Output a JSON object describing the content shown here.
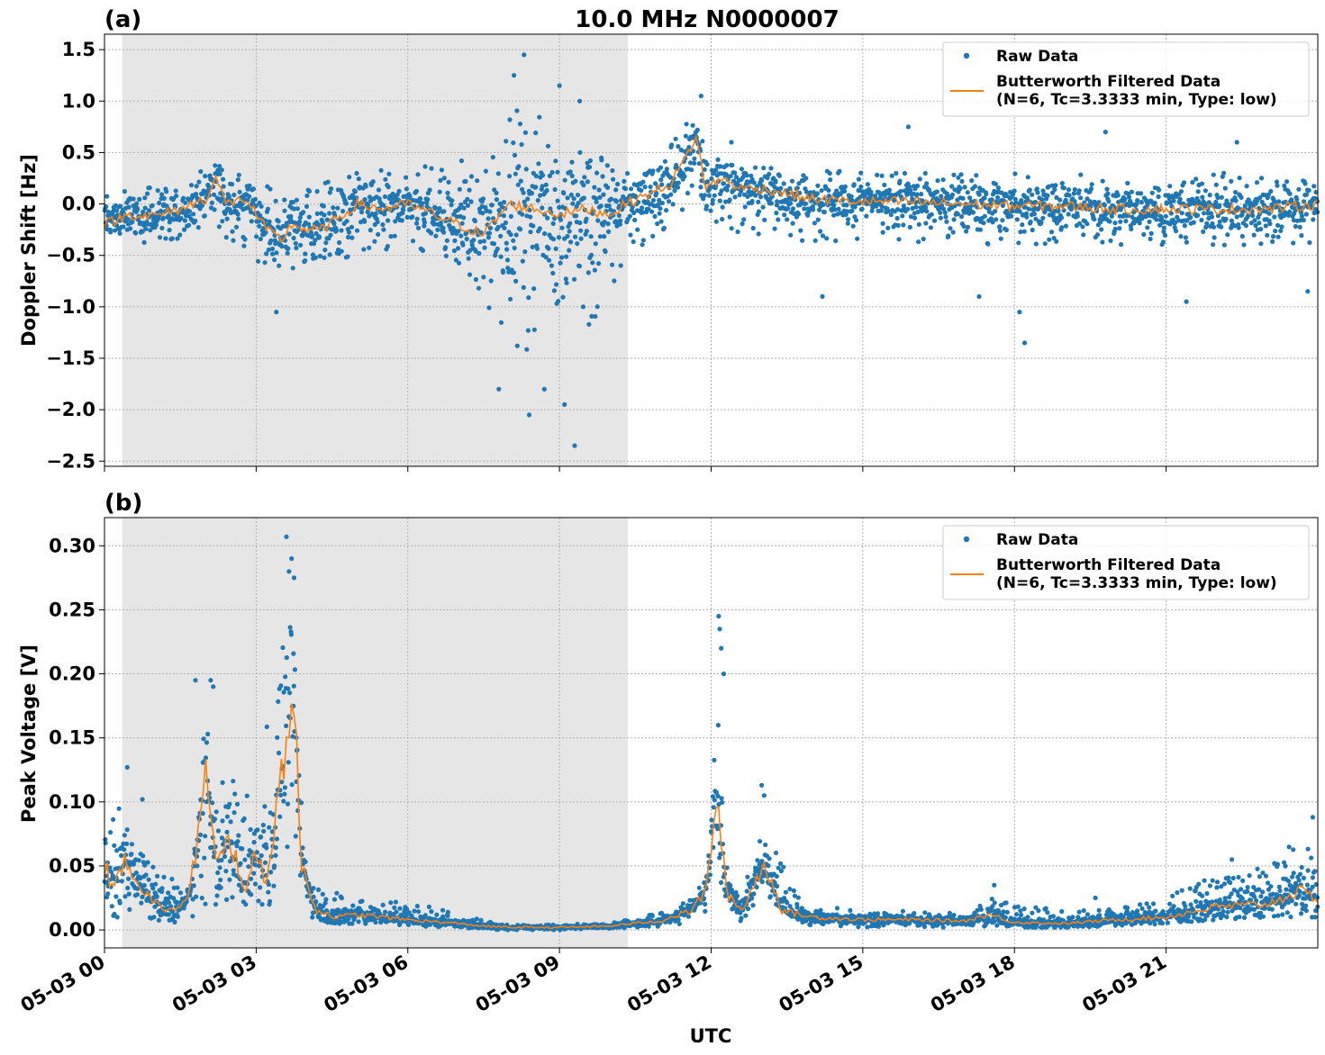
{
  "figure": {
    "title": "10.0 MHz N0000007",
    "xlabel": "UTC",
    "x_ticks": [
      "05-03 00",
      "05-03 03",
      "05-03 06",
      "05-03 09",
      "05-03 12",
      "05-03 15",
      "05-03 18",
      "05-03 21"
    ]
  },
  "legend": {
    "raw": "Raw Data",
    "filtered_line1": "Butterworth Filtered Data",
    "filtered_line2": "(N=6, Tc=3.3333 min, Type: low)"
  },
  "colors": {
    "raw": "#1f77b4",
    "filtered": "#ff7f0e",
    "shade": "#e6e6e6"
  },
  "chart_data": [
    {
      "type": "scatter",
      "panel_label": "(a)",
      "ylabel": "Doppler Shift [Hz]",
      "x_unit": "hours UTC on 05-03",
      "xlim": [
        0,
        24
      ],
      "ylim": [
        -2.55,
        1.65
      ],
      "y_ticks": [
        1.5,
        1.0,
        0.5,
        0.0,
        -0.5,
        -1.0,
        -1.5,
        -2.0,
        -2.5
      ],
      "y_tick_labels": [
        "1.5",
        "1.0",
        "0.5",
        "0.0",
        "−0.5",
        "−1.0",
        "−1.5",
        "−2.0",
        "−2.5"
      ],
      "grid": true,
      "legend_position": "top-right",
      "shaded_region_hours": [
        0.35,
        10.35
      ],
      "filtered_series": {
        "name": "Butterworth Filtered Data",
        "x": [
          0,
          0.5,
          1.0,
          1.5,
          2.0,
          2.2,
          2.4,
          2.8,
          3.2,
          3.5,
          3.7,
          4.0,
          4.3,
          4.6,
          5.0,
          5.5,
          6.0,
          6.5,
          7.0,
          7.5,
          8.0,
          8.5,
          9.0,
          9.5,
          10.0,
          10.3,
          10.8,
          11.2,
          11.5,
          11.7,
          11.9,
          12.2,
          12.6,
          13.0,
          13.5,
          14.0,
          15.0,
          16.0,
          17.0,
          18.0,
          19.0,
          20.0,
          21.0,
          22.0,
          23.0,
          24.0
        ],
        "y": [
          -0.2,
          -0.1,
          -0.12,
          -0.05,
          0.05,
          0.26,
          0.0,
          0.05,
          -0.25,
          -0.35,
          -0.2,
          -0.25,
          -0.25,
          -0.15,
          0.0,
          -0.05,
          0.0,
          -0.1,
          -0.2,
          -0.3,
          0.0,
          -0.05,
          -0.1,
          -0.05,
          -0.1,
          0.0,
          0.1,
          0.2,
          0.45,
          0.65,
          0.15,
          0.25,
          0.15,
          0.15,
          0.1,
          0.05,
          0.02,
          0.02,
          0.0,
          -0.02,
          -0.02,
          -0.05,
          -0.05,
          -0.05,
          -0.05,
          0.0
        ]
      },
      "raw_series": {
        "name": "Raw Data",
        "envelope_x": [
          0,
          1.5,
          2.2,
          3.0,
          3.5,
          4.5,
          6.0,
          7.0,
          7.5,
          8.0,
          8.5,
          9.0,
          9.5,
          10.0,
          10.3,
          11.0,
          11.6,
          12.0,
          13.0,
          16.0,
          20.0,
          24.0
        ],
        "envelope_low": [
          -0.45,
          -0.4,
          -0.25,
          -0.55,
          -0.7,
          -0.55,
          -0.4,
          -0.7,
          -1.0,
          -1.4,
          -1.5,
          -1.3,
          -1.3,
          -0.9,
          -0.5,
          -0.3,
          -0.1,
          -0.2,
          -0.35,
          -0.4,
          -0.4,
          -0.4
        ],
        "envelope_high": [
          0.15,
          0.2,
          0.45,
          0.2,
          0.15,
          0.3,
          0.35,
          0.4,
          0.6,
          1.0,
          1.1,
          0.6,
          0.55,
          0.45,
          0.4,
          0.45,
          0.85,
          0.45,
          0.35,
          0.3,
          0.3,
          0.3
        ],
        "outliers": [
          [
            8.3,
            1.45
          ],
          [
            9.0,
            1.15
          ],
          [
            8.1,
            1.25
          ],
          [
            9.4,
            1.0
          ],
          [
            7.8,
            -1.8
          ],
          [
            8.4,
            -2.05
          ],
          [
            9.3,
            -2.35
          ],
          [
            9.1,
            -1.95
          ],
          [
            8.7,
            -1.8
          ],
          [
            3.4,
            -1.05
          ],
          [
            11.8,
            1.05
          ],
          [
            18.2,
            -1.35
          ],
          [
            18.1,
            -1.05
          ],
          [
            19.8,
            0.7
          ],
          [
            15.9,
            0.75
          ],
          [
            12.4,
            0.6
          ],
          [
            22.4,
            0.6
          ],
          [
            17.3,
            -0.9
          ],
          [
            14.2,
            -0.9
          ],
          [
            23.8,
            -0.85
          ],
          [
            21.4,
            -0.95
          ]
        ]
      }
    },
    {
      "type": "scatter",
      "panel_label": "(b)",
      "ylabel": "Peak Voltage [V]",
      "x_unit": "hours UTC on 05-03",
      "xlim": [
        0,
        24
      ],
      "ylim": [
        -0.014,
        0.322
      ],
      "y_ticks": [
        0.3,
        0.25,
        0.2,
        0.15,
        0.1,
        0.05,
        0.0
      ],
      "y_tick_labels": [
        "0.30",
        "0.25",
        "0.20",
        "0.15",
        "0.10",
        "0.05",
        "0.00"
      ],
      "grid": true,
      "legend_position": "top-right",
      "shaded_region_hours": [
        0.35,
        10.35
      ],
      "filtered_series": {
        "name": "Butterworth Filtered Data",
        "x": [
          0,
          0.2,
          0.4,
          0.7,
          1.0,
          1.3,
          1.6,
          1.8,
          2.0,
          2.2,
          2.5,
          2.8,
          3.0,
          3.2,
          3.4,
          3.6,
          3.75,
          3.9,
          4.2,
          4.6,
          5.0,
          6.0,
          7.0,
          7.5,
          8.0,
          9.0,
          10.0,
          10.4,
          11.0,
          11.6,
          11.9,
          12.1,
          12.3,
          12.6,
          12.9,
          13.1,
          13.4,
          14.0,
          15.0,
          16.0,
          17.0,
          17.5,
          18.0,
          19.0,
          20.0,
          21.0,
          22.0,
          23.0,
          23.6,
          24.0
        ],
        "y": [
          0.05,
          0.03,
          0.06,
          0.035,
          0.02,
          0.015,
          0.02,
          0.06,
          0.12,
          0.05,
          0.07,
          0.03,
          0.06,
          0.04,
          0.09,
          0.16,
          0.17,
          0.05,
          0.015,
          0.01,
          0.012,
          0.008,
          0.005,
          0.003,
          0.002,
          0.002,
          0.003,
          0.005,
          0.007,
          0.015,
          0.03,
          0.105,
          0.03,
          0.015,
          0.04,
          0.05,
          0.015,
          0.01,
          0.008,
          0.008,
          0.007,
          0.012,
          0.006,
          0.005,
          0.008,
          0.01,
          0.018,
          0.02,
          0.03,
          0.025
        ]
      },
      "raw_series": {
        "name": "Raw Data",
        "envelope_x": [
          0,
          0.3,
          0.7,
          1.2,
          1.7,
          2.0,
          2.5,
          3.0,
          3.3,
          3.6,
          3.75,
          4.0,
          4.5,
          5.5,
          6.5,
          7.2,
          8.0,
          9.0,
          10.0,
          10.5,
          11.3,
          11.9,
          12.1,
          12.3,
          12.6,
          13.0,
          13.3,
          13.8,
          15.0,
          17.0,
          17.6,
          18.0,
          19.0,
          20.0,
          21.0,
          22.0,
          23.0,
          24.0
        ],
        "envelope_low": [
          0.01,
          0.01,
          0.01,
          0.005,
          0.008,
          0.02,
          0.02,
          0.02,
          0.02,
          0.04,
          0.05,
          0.01,
          0.005,
          0.005,
          0.002,
          0.001,
          0.0,
          0.0,
          0.001,
          0.002,
          0.003,
          0.01,
          0.05,
          0.01,
          0.006,
          0.02,
          0.02,
          0.004,
          0.002,
          0.002,
          0.003,
          0.002,
          0.002,
          0.003,
          0.005,
          0.008,
          0.01,
          0.01
        ],
        "envelope_high": [
          0.08,
          0.1,
          0.07,
          0.05,
          0.03,
          0.17,
          0.12,
          0.11,
          0.18,
          0.26,
          0.22,
          0.04,
          0.03,
          0.025,
          0.018,
          0.01,
          0.005,
          0.004,
          0.006,
          0.01,
          0.015,
          0.04,
          0.19,
          0.05,
          0.025,
          0.08,
          0.06,
          0.02,
          0.015,
          0.015,
          0.03,
          0.02,
          0.015,
          0.018,
          0.025,
          0.045,
          0.055,
          0.08
        ],
        "outliers": [
          [
            3.6,
            0.307
          ],
          [
            3.7,
            0.29
          ],
          [
            3.65,
            0.28
          ],
          [
            3.75,
            0.275
          ],
          [
            12.15,
            0.245
          ],
          [
            12.17,
            0.235
          ],
          [
            12.2,
            0.22
          ],
          [
            12.25,
            0.2
          ],
          [
            1.8,
            0.195
          ],
          [
            2.1,
            0.195
          ],
          [
            2.15,
            0.19
          ],
          [
            0.45,
            0.127
          ],
          [
            0.75,
            0.102
          ],
          [
            13.0,
            0.113
          ],
          [
            13.05,
            0.105
          ],
          [
            23.9,
            0.088
          ],
          [
            22.3,
            0.055
          ],
          [
            17.6,
            0.035
          ],
          [
            19.6,
            0.025
          ]
        ]
      }
    }
  ]
}
